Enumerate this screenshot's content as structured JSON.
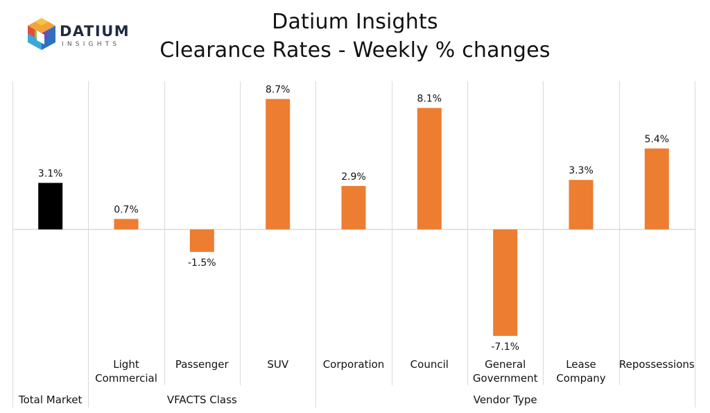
{
  "header": {
    "title_line1": "Datium Insights",
    "title_line2": "Clearance Rates - Weekly % changes"
  },
  "logo": {
    "wordmark": "DATIUM",
    "subtext": "INSIGHTS"
  },
  "colors": {
    "total_market_bar": "#000000",
    "segment_bar": "#ED7D31",
    "gridline": "#D9D9D9",
    "zero_line": "#D9D9D9"
  },
  "chart_data": {
    "type": "bar",
    "title": "Clearance Rates - Weekly % changes",
    "xlabel": "",
    "ylabel": "",
    "ylim": [
      -9.2,
      10.0
    ],
    "unit": "%",
    "categories": [
      [
        "Total Market"
      ],
      [
        "Light",
        "Commercial"
      ],
      [
        "Passenger"
      ],
      [
        "SUV"
      ],
      [
        "Corporation"
      ],
      [
        "Council"
      ],
      [
        "General",
        "Government"
      ],
      [
        "Lease",
        "Company"
      ],
      [
        "Repossessions"
      ]
    ],
    "values": [
      3.1,
      0.7,
      -1.5,
      8.7,
      2.9,
      8.1,
      -7.1,
      3.3,
      5.4
    ],
    "data_labels": [
      "3.1%",
      "0.7%",
      "-1.5%",
      "8.7%",
      "2.9%",
      "8.1%",
      "-7.1%",
      "3.3%",
      "5.4%"
    ],
    "bar_colors": [
      "#000000",
      "#ED7D31",
      "#ED7D31",
      "#ED7D31",
      "#ED7D31",
      "#ED7D31",
      "#ED7D31",
      "#ED7D31",
      "#ED7D31"
    ],
    "groups": [
      {
        "name": "Total Market",
        "start": 0,
        "end": 0
      },
      {
        "name": "VFACTS Class",
        "start": 1,
        "end": 3
      },
      {
        "name": "Vendor Type",
        "start": 4,
        "end": 8
      }
    ]
  }
}
